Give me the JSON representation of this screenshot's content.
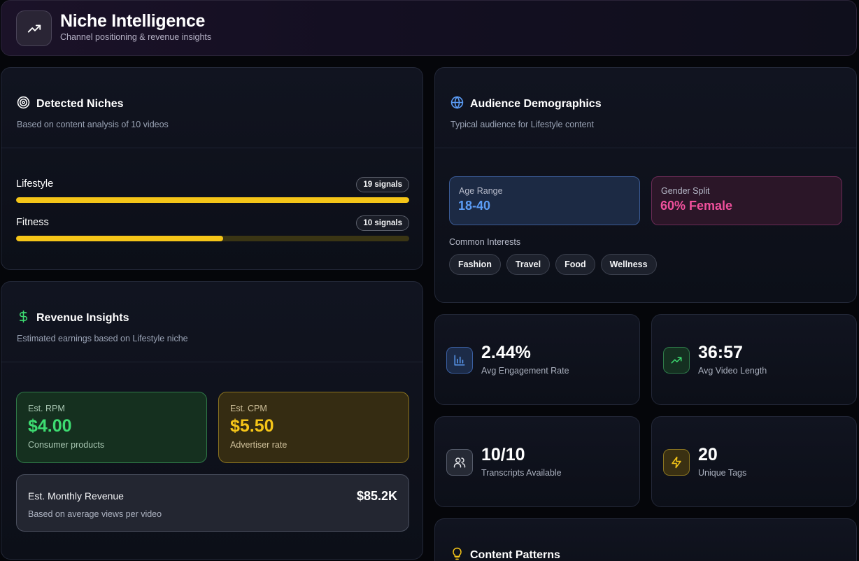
{
  "header": {
    "title": "Niche Intelligence",
    "subtitle": "Channel positioning & revenue insights",
    "icon": "trending-up-icon"
  },
  "niches": {
    "title": "Detected Niches",
    "subtitle": "Based on content analysis of 10 videos",
    "icon": "target-icon",
    "items": [
      {
        "label": "Lifestyle",
        "badge": "19 signals",
        "fraction": 1.0
      },
      {
        "label": "Fitness",
        "badge": "10 signals",
        "fraction": 0.526
      }
    ],
    "bar_color": "#f5c518"
  },
  "revenue": {
    "title": "Revenue Insights",
    "subtitle": "Estimated earnings based on Lifestyle niche",
    "icon": "dollar-icon",
    "rpm": {
      "label": "Est. RPM",
      "value": "$4.00",
      "note": "Consumer products"
    },
    "cpm": {
      "label": "Est. CPM",
      "value": "$5.50",
      "note": "Advertiser rate"
    },
    "monthly": {
      "label": "Est. Monthly Revenue",
      "note": "Based on average views per video",
      "value": "$85.2K"
    }
  },
  "audience": {
    "title": "Audience Demographics",
    "subtitle": "Typical audience for Lifestyle content",
    "icon": "globe-icon",
    "age": {
      "label": "Age Range",
      "value": "18-40"
    },
    "gender": {
      "label": "Gender Split",
      "value": "60% Female"
    },
    "interests_label": "Common Interests",
    "interests": [
      "Fashion",
      "Travel",
      "Food",
      "Wellness"
    ]
  },
  "stats": {
    "engagement": {
      "value": "2.44%",
      "label": "Avg Engagement Rate",
      "icon": "bar-chart-icon"
    },
    "length": {
      "value": "36:57",
      "label": "Avg Video Length",
      "icon": "trending-up-icon"
    },
    "transcripts": {
      "value": "10/10",
      "label": "Transcripts Available",
      "icon": "users-icon"
    },
    "tags": {
      "value": "20",
      "label": "Unique Tags",
      "icon": "lightning-icon"
    }
  },
  "patterns": {
    "title": "Content Patterns",
    "icon": "lightbulb-icon"
  },
  "colors": {
    "accent_yellow": "#f5c518",
    "accent_green": "#3ddc71",
    "accent_blue": "#5b9cf5",
    "accent_pink": "#f0509c"
  }
}
